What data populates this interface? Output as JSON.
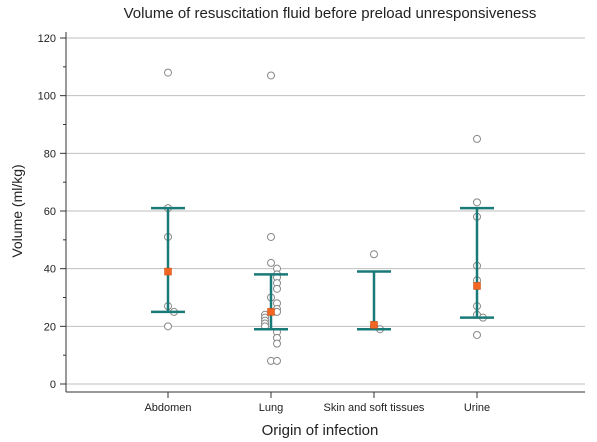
{
  "chart_data": {
    "type": "scatter",
    "title": "Volume of resuscitation fluid before preload unresponsiveness",
    "xlabel": "Origin of infection",
    "ylabel": "Volume (ml/kg)",
    "categories": [
      "Abdomen",
      "Lung",
      "Skin and soft tissues",
      "Urine"
    ],
    "ylim": [
      0,
      120
    ],
    "yticks": [
      0,
      20,
      40,
      60,
      80,
      100,
      120
    ],
    "grid": true,
    "points": [
      [
        108,
        61,
        51,
        27,
        25,
        20
      ],
      [
        107,
        51,
        42,
        40,
        38,
        37,
        35,
        33,
        30,
        28,
        26,
        25,
        24,
        23,
        22,
        21,
        20,
        18,
        16,
        14,
        8,
        8
      ],
      [
        45,
        20,
        19
      ],
      [
        85,
        63,
        58,
        41,
        36,
        27,
        24,
        23,
        17
      ]
    ],
    "summary": [
      {
        "mean": 39,
        "upper": 61,
        "lower": 25
      },
      {
        "mean": 25,
        "upper": 38,
        "lower": 19
      },
      {
        "mean": 20.5,
        "upper": 39,
        "lower": 19
      },
      {
        "mean": 34,
        "upper": 61,
        "lower": 23
      }
    ],
    "colors": {
      "whisker": "#1a7a78",
      "mean_marker": "#f26522",
      "point_stroke": "#888888",
      "grid": "#bfbfbf"
    }
  }
}
